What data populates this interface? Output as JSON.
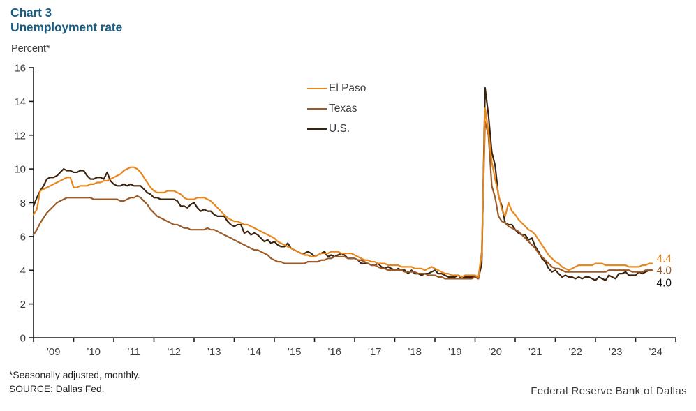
{
  "header": {
    "chart_label": "Chart 3",
    "title": "Unemployment rate",
    "y_axis_unit": "Percent*"
  },
  "footer": {
    "note": "*Seasonally adjusted, monthly.",
    "source": "SOURCE: Dallas Fed.",
    "wordmark": "Federal Reserve Bank of Dallas"
  },
  "colors": {
    "title_blue": "#175D84",
    "axis": "#1a1a1a",
    "tick_text": "#3d3d3d",
    "el_paso": "#E8871E",
    "texas": "#9A5B28",
    "us": "#3B240F",
    "us_end_label": "#111111"
  },
  "chart_data": {
    "type": "line",
    "title": "Unemployment rate",
    "ylabel": "Percent*",
    "ylim": [
      0,
      16
    ],
    "y_ticks": [
      0,
      2,
      4,
      6,
      8,
      10,
      12,
      14,
      16
    ],
    "x_tick_labels": [
      "'09",
      "'10",
      "'11",
      "'12",
      "'13",
      "'14",
      "'15",
      "'16",
      "'17",
      "'18",
      "'19",
      "'20",
      "'21",
      "'22",
      "'23",
      "'24"
    ],
    "frequency": "monthly",
    "start": "2009-01",
    "end": "2024-06",
    "grid": false,
    "legend_position": "inside-top-center",
    "series": [
      {
        "name": "El Paso",
        "color": "#E8871E",
        "end_label": "4.4",
        "end_label_color": "#E8871E",
        "values": [
          7.3,
          7.6,
          8.7,
          8.8,
          8.9,
          9.0,
          9.1,
          9.2,
          9.3,
          9.4,
          9.5,
          9.5,
          8.9,
          8.9,
          9.0,
          9.0,
          9.0,
          9.1,
          9.1,
          9.2,
          9.2,
          9.3,
          9.3,
          9.4,
          9.5,
          9.6,
          9.7,
          9.9,
          10.0,
          10.1,
          10.1,
          10.0,
          9.8,
          9.5,
          9.2,
          8.9,
          8.7,
          8.6,
          8.6,
          8.6,
          8.7,
          8.7,
          8.7,
          8.6,
          8.5,
          8.3,
          8.2,
          8.2,
          8.2,
          8.3,
          8.3,
          8.3,
          8.2,
          8.1,
          7.9,
          7.7,
          7.5,
          7.3,
          7.1,
          7.0,
          6.9,
          6.9,
          6.8,
          6.7,
          6.7,
          6.6,
          6.5,
          6.4,
          6.3,
          6.2,
          6.1,
          6.0,
          5.9,
          5.7,
          5.6,
          5.5,
          5.4,
          5.3,
          5.2,
          5.1,
          5.0,
          4.9,
          4.9,
          4.8,
          4.8,
          4.9,
          5.0,
          5.0,
          5.0,
          5.1,
          5.1,
          5.1,
          5.0,
          5.0,
          5.0,
          5.0,
          4.9,
          4.8,
          4.7,
          4.6,
          4.6,
          4.5,
          4.5,
          4.4,
          4.4,
          4.4,
          4.3,
          4.3,
          4.3,
          4.3,
          4.2,
          4.2,
          4.2,
          4.2,
          4.1,
          4.1,
          4.1,
          4.0,
          4.1,
          4.2,
          4.1,
          4.0,
          3.9,
          3.8,
          3.8,
          3.7,
          3.7,
          3.7,
          3.6,
          3.7,
          3.7,
          3.7,
          3.7,
          3.6,
          5.0,
          13.6,
          12.2,
          10.4,
          9.4,
          8.5,
          7.6,
          7.2,
          8.0,
          7.5,
          7.3,
          7.0,
          6.8,
          6.6,
          6.4,
          6.3,
          6.1,
          5.8,
          5.5,
          5.2,
          4.9,
          4.7,
          4.5,
          4.4,
          4.2,
          4.1,
          4.0,
          4.1,
          4.2,
          4.3,
          4.3,
          4.3,
          4.3,
          4.3,
          4.4,
          4.4,
          4.4,
          4.3,
          4.3,
          4.3,
          4.3,
          4.3,
          4.3,
          4.3,
          4.2,
          4.2,
          4.2,
          4.2,
          4.3,
          4.3,
          4.4,
          4.4
        ]
      },
      {
        "name": "Texas",
        "color": "#9A5B28",
        "end_label": "4.0",
        "end_label_color": "#9A5B28",
        "values": [
          6.1,
          6.4,
          6.8,
          7.1,
          7.4,
          7.6,
          7.8,
          8.0,
          8.1,
          8.2,
          8.3,
          8.3,
          8.3,
          8.3,
          8.3,
          8.3,
          8.3,
          8.3,
          8.2,
          8.2,
          8.2,
          8.2,
          8.2,
          8.2,
          8.2,
          8.2,
          8.1,
          8.1,
          8.2,
          8.3,
          8.3,
          8.4,
          8.3,
          8.1,
          7.9,
          7.6,
          7.4,
          7.2,
          7.1,
          7.0,
          6.9,
          6.8,
          6.7,
          6.7,
          6.6,
          6.5,
          6.5,
          6.4,
          6.4,
          6.4,
          6.4,
          6.4,
          6.5,
          6.4,
          6.4,
          6.3,
          6.2,
          6.1,
          6.0,
          5.9,
          5.8,
          5.7,
          5.6,
          5.5,
          5.4,
          5.3,
          5.2,
          5.2,
          5.1,
          5.0,
          4.9,
          4.7,
          4.6,
          4.5,
          4.5,
          4.4,
          4.4,
          4.4,
          4.4,
          4.4,
          4.4,
          4.4,
          4.5,
          4.5,
          4.5,
          4.5,
          4.6,
          4.6,
          4.7,
          4.7,
          4.8,
          4.8,
          4.8,
          4.8,
          4.7,
          4.7,
          4.7,
          4.6,
          4.6,
          4.5,
          4.4,
          4.3,
          4.3,
          4.2,
          4.1,
          4.1,
          4.0,
          4.0,
          4.0,
          4.0,
          4.0,
          3.9,
          3.9,
          3.9,
          3.9,
          3.8,
          3.8,
          3.8,
          3.7,
          3.7,
          3.7,
          3.6,
          3.6,
          3.5,
          3.5,
          3.5,
          3.5,
          3.5,
          3.5,
          3.5,
          3.5,
          3.5,
          3.6,
          3.5,
          5.1,
          12.8,
          12.0,
          9.0,
          8.3,
          7.2,
          6.9,
          6.8,
          6.6,
          6.5,
          6.4,
          6.3,
          6.1,
          5.9,
          5.7,
          5.5,
          5.3,
          5.0,
          4.8,
          4.6,
          4.4,
          4.2,
          4.1,
          4.1,
          4.0,
          3.9,
          3.9,
          3.9,
          3.9,
          3.9,
          3.9,
          3.9,
          3.9,
          3.9,
          3.9,
          3.9,
          3.9,
          3.9,
          4.0,
          4.0,
          4.0,
          4.0,
          4.0,
          4.0,
          4.0,
          3.9,
          3.9,
          3.9,
          3.9,
          4.0,
          4.0,
          4.0
        ]
      },
      {
        "name": "U.S.",
        "color": "#3B240F",
        "end_label": "4.0",
        "end_label_color": "#111111",
        "values": [
          7.8,
          8.3,
          8.7,
          9.0,
          9.4,
          9.5,
          9.5,
          9.6,
          9.8,
          10.0,
          9.9,
          9.9,
          9.8,
          9.8,
          9.9,
          9.9,
          9.6,
          9.4,
          9.4,
          9.5,
          9.5,
          9.4,
          9.8,
          9.3,
          9.1,
          9.0,
          9.0,
          9.1,
          9.0,
          9.1,
          9.0,
          9.0,
          9.0,
          8.8,
          8.6,
          8.5,
          8.3,
          8.3,
          8.2,
          8.2,
          8.2,
          8.2,
          8.2,
          8.1,
          7.8,
          7.8,
          7.7,
          7.9,
          8.0,
          7.7,
          7.5,
          7.6,
          7.5,
          7.5,
          7.3,
          7.2,
          7.2,
          7.2,
          6.9,
          6.7,
          6.6,
          6.7,
          6.7,
          6.2,
          6.3,
          6.1,
          6.2,
          6.1,
          5.9,
          5.7,
          5.8,
          5.6,
          5.7,
          5.5,
          5.4,
          5.4,
          5.6,
          5.3,
          5.2,
          5.1,
          5.0,
          5.0,
          5.1,
          5.0,
          4.8,
          4.9,
          5.0,
          5.1,
          4.8,
          4.9,
          4.8,
          4.9,
          5.0,
          4.9,
          4.7,
          4.7,
          4.7,
          4.6,
          4.4,
          4.4,
          4.4,
          4.3,
          4.3,
          4.4,
          4.2,
          4.1,
          4.2,
          4.1,
          4.0,
          4.1,
          4.0,
          4.0,
          3.8,
          4.0,
          3.8,
          3.8,
          3.7,
          3.8,
          3.8,
          3.9,
          4.0,
          3.8,
          3.8,
          3.7,
          3.6,
          3.6,
          3.6,
          3.7,
          3.5,
          3.6,
          3.6,
          3.6,
          3.6,
          3.5,
          4.4,
          14.8,
          13.2,
          11.0,
          10.2,
          8.4,
          7.8,
          6.8,
          6.7,
          6.7,
          6.4,
          6.2,
          6.1,
          6.1,
          5.8,
          5.9,
          5.4,
          5.1,
          4.7,
          4.5,
          4.1,
          3.9,
          4.0,
          3.8,
          3.6,
          3.7,
          3.6,
          3.6,
          3.5,
          3.6,
          3.5,
          3.6,
          3.6,
          3.5,
          3.4,
          3.6,
          3.5,
          3.4,
          3.7,
          3.6,
          3.5,
          3.8,
          3.8,
          3.9,
          3.7,
          3.7,
          3.7,
          3.9,
          3.8,
          3.9,
          4.0,
          4.0
        ]
      }
    ]
  }
}
